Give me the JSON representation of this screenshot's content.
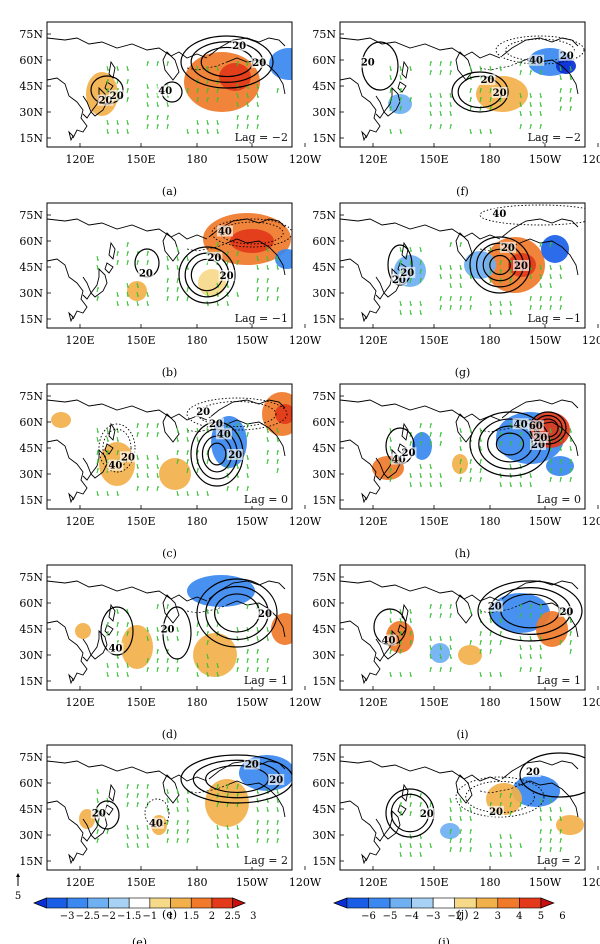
{
  "panels": [
    {
      "id": "a",
      "caption": "(a)",
      "lag": "Lag = −2",
      "clabels": [
        "20",
        "20",
        "40",
        "20",
        "20"
      ]
    },
    {
      "id": "f",
      "caption": "(f)",
      "lag": "Lag = −2",
      "clabels": [
        "20",
        "40",
        "20",
        "20",
        "20"
      ]
    },
    {
      "id": "b",
      "caption": "(b)",
      "lag": "Lag = −1",
      "clabels": [
        "20",
        "20",
        "40",
        "20"
      ]
    },
    {
      "id": "g",
      "caption": "(g)",
      "lag": "Lag = −1",
      "clabels": [
        "20",
        "20",
        "40",
        "20",
        "20"
      ]
    },
    {
      "id": "c",
      "caption": "(c)",
      "lag": "Lag = 0",
      "clabels": [
        "20",
        "40",
        "20",
        "40",
        "20",
        "20"
      ]
    },
    {
      "id": "h",
      "caption": "(h)",
      "lag": "Lag = 0",
      "clabels": [
        "20",
        "40",
        "60",
        "40",
        "20",
        "20"
      ]
    },
    {
      "id": "d",
      "caption": "(d)",
      "lag": "Lag = 1",
      "clabels": [
        "20",
        "40",
        "20"
      ]
    },
    {
      "id": "i",
      "caption": "(i)",
      "lag": "Lag = 1",
      "clabels": [
        "20",
        "40",
        "20"
      ]
    },
    {
      "id": "e",
      "caption": "(e)",
      "lag": "Lag = 2",
      "clabels": [
        "20",
        "40",
        "20",
        "20"
      ]
    },
    {
      "id": "j",
      "caption": "(j)",
      "lag": "Lag = 2",
      "clabels": [
        "20",
        "20",
        "20"
      ]
    }
  ],
  "lat_labels": [
    "75N",
    "60N",
    "45N",
    "30N",
    "15N"
  ],
  "lon_labels": [
    "120E",
    "150E",
    "180",
    "150W",
    "120W"
  ],
  "legend_left": {
    "ref_vector_value": "5",
    "ticks": [
      "−3",
      "−2.5",
      "−2",
      "−1.5",
      "−1",
      "1",
      "1.5",
      "2",
      "2.5",
      "3"
    ],
    "caption": "(e)",
    "colors": [
      "#0a2fd6",
      "#1a5ee8",
      "#3a88f0",
      "#6fb0f2",
      "#a8d2f5",
      "#ffffff",
      "#f7d98a",
      "#f2b04a",
      "#f07a2a",
      "#e23a1a",
      "#c80e0e"
    ]
  },
  "legend_right": {
    "ticks": [
      "−6",
      "−5",
      "−4",
      "−3",
      "−2",
      "2",
      "3",
      "4",
      "5",
      "6"
    ],
    "caption": "(j)",
    "colors": [
      "#0a2fd6",
      "#1a5ee8",
      "#3a88f0",
      "#6fb0f2",
      "#a8d2f5",
      "#ffffff",
      "#f7d98a",
      "#f2b04a",
      "#f07a2a",
      "#e23a1a",
      "#c80e0e"
    ]
  }
}
